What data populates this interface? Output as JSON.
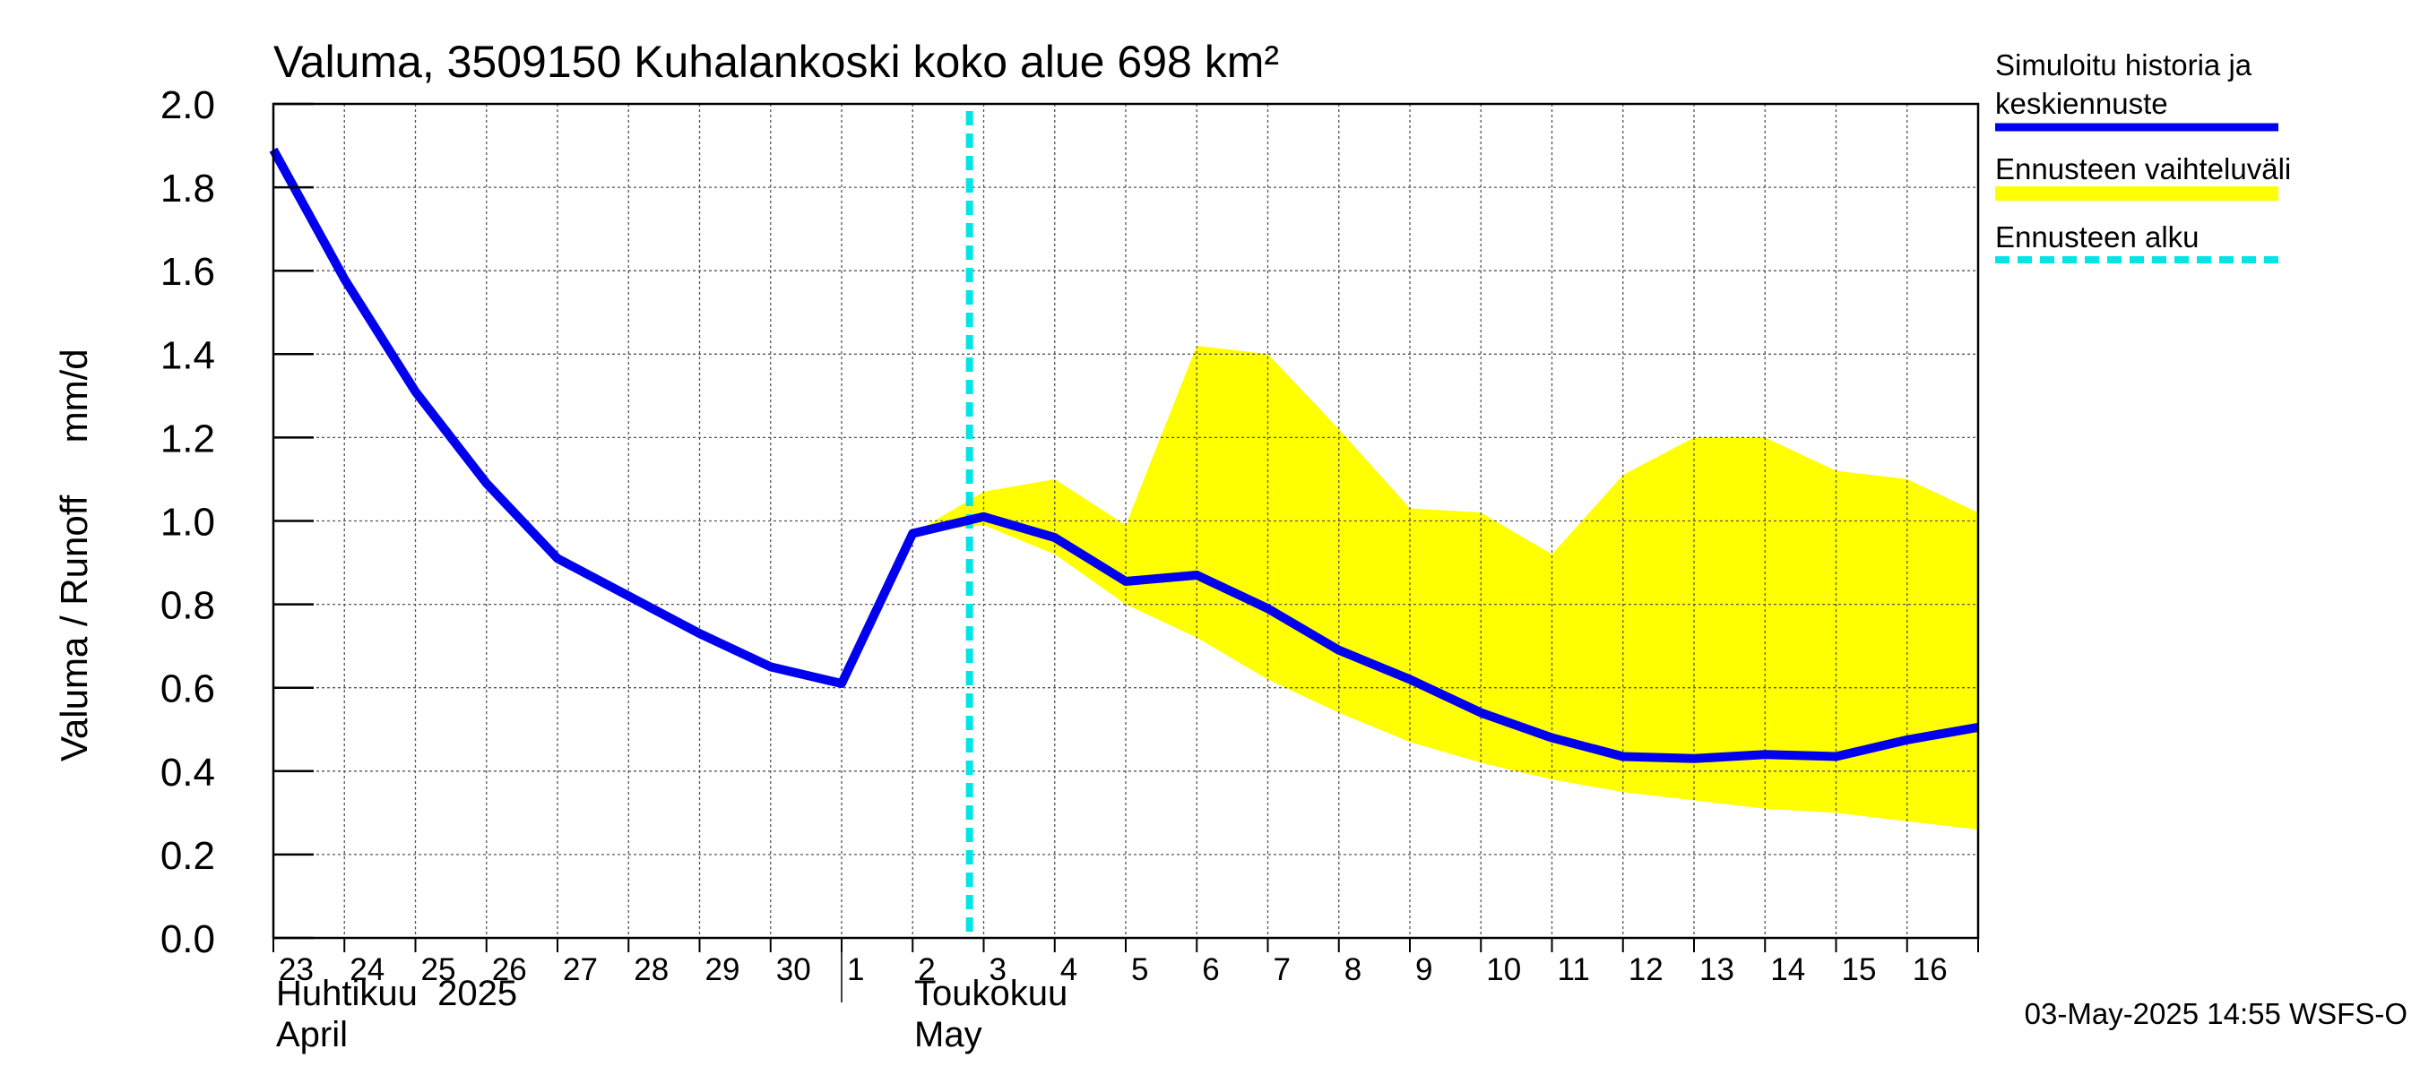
{
  "chart_data": {
    "type": "line",
    "title": "Valuma, 3509150 Kuhalankoski koko alue 698 km²",
    "ylabel": "Valuma / Runoff     mm/d",
    "ylim": [
      0,
      2
    ],
    "yticks": [
      "0.0",
      "0.2",
      "0.4",
      "0.6",
      "0.8",
      "1.0",
      "1.2",
      "1.4",
      "1.6",
      "1.8",
      "2.0"
    ],
    "x_dates": [
      "2025-04-23",
      "2025-04-24",
      "2025-04-25",
      "2025-04-26",
      "2025-04-27",
      "2025-04-28",
      "2025-04-29",
      "2025-04-30",
      "2025-05-01",
      "2025-05-02",
      "2025-05-03",
      "2025-05-04",
      "2025-05-05",
      "2025-05-06",
      "2025-05-07",
      "2025-05-08",
      "2025-05-09",
      "2025-05-10",
      "2025-05-11",
      "2025-05-12",
      "2025-05-13",
      "2025-05-14",
      "2025-05-15",
      "2025-05-16",
      "2025-05-17"
    ],
    "xtick_labels": [
      "23",
      "24",
      "25",
      "26",
      "27",
      "28",
      "29",
      "30",
      "1",
      "2",
      "3",
      "4",
      "5",
      "6",
      "7",
      "8",
      "9",
      "10",
      "11",
      "12",
      "13",
      "14",
      "15",
      "16"
    ],
    "month_labels": [
      {
        "line1": "Huhtikuu  2025",
        "line2": "April",
        "date": "2025-04-23"
      },
      {
        "line1": "Toukokuu",
        "line2": "May",
        "date": "2025-05-02"
      }
    ],
    "series": [
      {
        "name": "Simuloitu historia ja keskiennuste",
        "color": "#0000ee",
        "values": [
          1.89,
          1.58,
          1.31,
          1.09,
          0.91,
          0.82,
          0.73,
          0.65,
          0.61,
          0.97,
          1.01,
          0.96,
          0.855,
          0.87,
          0.79,
          0.69,
          0.62,
          0.54,
          0.48,
          0.435,
          0.43,
          0.44,
          0.435,
          0.475,
          0.505
        ]
      }
    ],
    "band": {
      "name": "Ennusteen vaihteluväli",
      "color": "#ffff00",
      "start_index": 9,
      "upper": [
        0.97,
        1.07,
        1.1,
        0.99,
        1.42,
        1.4,
        1.22,
        1.03,
        1.02,
        0.92,
        1.11,
        1.2,
        1.2,
        1.12,
        1.1,
        1.02
      ],
      "lower": [
        0.97,
        0.99,
        0.92,
        0.8,
        0.72,
        0.62,
        0.54,
        0.47,
        0.42,
        0.38,
        0.35,
        0.33,
        0.31,
        0.3,
        0.28,
        0.26
      ]
    },
    "forecast_start": {
      "name": "Ennusteen alku",
      "date": "2025-05-03",
      "color": "#00e5e5"
    },
    "legend": {
      "position": "right",
      "items": [
        {
          "line1": "Simuloitu historia ja",
          "line2": "keskiennuste",
          "color": "#0000ee",
          "style": "solid"
        },
        {
          "line1": "Ennusteen vaihteluväli",
          "line2": "",
          "color": "#ffff00",
          "style": "band"
        },
        {
          "line1": "Ennusteen alku",
          "line2": "",
          "color": "#00e5e5",
          "style": "dashed"
        }
      ]
    },
    "grid": true,
    "footer": "03-May-2025 14:55 WSFS-O"
  }
}
